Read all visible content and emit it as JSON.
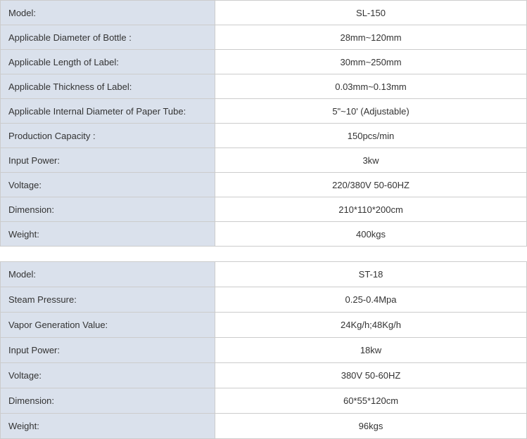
{
  "tables": [
    {
      "rows": [
        {
          "label": "Model:",
          "value": "SL-150"
        },
        {
          "label": "Applicable Diameter of Bottle :",
          "value": "28mm~120mm"
        },
        {
          "label": "Applicable Length of Label:",
          "value": "30mm~250mm"
        },
        {
          "label": "Applicable Thickness of Label:",
          "value": "0.03mm~0.13mm"
        },
        {
          "label": "Applicable Internal Diameter of Paper Tube:",
          "value": "5\"~10' (Adjustable)"
        },
        {
          "label": "Production Capacity :",
          "value": "150pcs/min"
        },
        {
          "label": "Input Power:",
          "value": "3kw"
        },
        {
          "label": "Voltage:",
          "value": "220/380V 50-60HZ"
        },
        {
          "label": "Dimension:",
          "value": "210*110*200cm"
        },
        {
          "label": "Weight:",
          "value": "400kgs"
        }
      ]
    },
    {
      "rows": [
        {
          "label": "Model:",
          "value": "ST-18"
        },
        {
          "label": "Steam Pressure:",
          "value": "0.25-0.4Mpa"
        },
        {
          "label": "Vapor Generation Value:",
          "value": "24Kg/h;48Kg/h"
        },
        {
          "label": "Input Power:",
          "value": "18kw"
        },
        {
          "label": "Voltage:",
          "value": "380V 50-60HZ"
        },
        {
          "label": "Dimension:",
          "value": "60*55*120cm"
        },
        {
          "label": "Weight:",
          "value": "96kgs"
        }
      ]
    }
  ],
  "colors": {
    "label_bg": "#dae1ec",
    "border": "#cccccc",
    "text": "#333333"
  }
}
